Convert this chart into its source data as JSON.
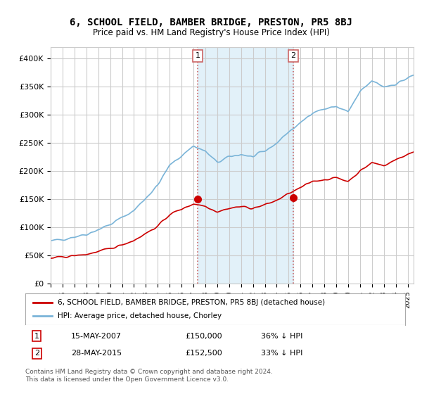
{
  "title": "6, SCHOOL FIELD, BAMBER BRIDGE, PRESTON, PR5 8BJ",
  "subtitle": "Price paid vs. HM Land Registry's House Price Index (HPI)",
  "ylabel": "",
  "ylim": [
    0,
    420000
  ],
  "yticks": [
    0,
    50000,
    100000,
    150000,
    200000,
    250000,
    300000,
    350000,
    400000
  ],
  "ytick_labels": [
    "£0",
    "£50K",
    "£100K",
    "£150K",
    "£200K",
    "£250K",
    "£300K",
    "£350K",
    "£400K"
  ],
  "xlim_start": 1995.0,
  "xlim_end": 2025.5,
  "background_color": "#ffffff",
  "plot_bg_color": "#ffffff",
  "grid_color": "#cccccc",
  "hpi_color": "#7ab4d8",
  "price_color": "#cc0000",
  "shade_color": "#d0e8f5",
  "purchase1_x": 2007.37,
  "purchase1_y": 150000,
  "purchase1_label": "1",
  "purchase2_x": 2015.4,
  "purchase2_y": 152500,
  "purchase2_label": "2",
  "vline_color": "#cc6666",
  "footnote1": "Contains HM Land Registry data © Crown copyright and database right 2024.",
  "footnote2": "This data is licensed under the Open Government Licence v3.0.",
  "legend_line1": "6, SCHOOL FIELD, BAMBER BRIDGE, PRESTON, PR5 8BJ (detached house)",
  "legend_line2": "HPI: Average price, detached house, Chorley",
  "table_row1": [
    "1",
    "15-MAY-2007",
    "£150,000",
    "36% ↓ HPI"
  ],
  "table_row2": [
    "2",
    "28-MAY-2015",
    "£152,500",
    "33% ↓ HPI"
  ]
}
